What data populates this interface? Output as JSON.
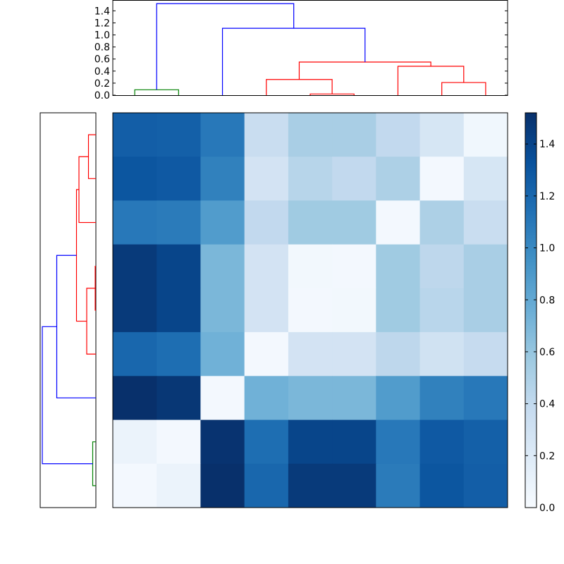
{
  "chart_data": {
    "type": "heatmap",
    "title": "",
    "description": "Clustered distance matrix heatmap with top and left dendrograms and a Blues colorbar",
    "colormap": "Blues",
    "vmin": 0.0,
    "vmax": 1.52,
    "matrix": [
      [
        1.25,
        1.24,
        1.1,
        0.36,
        0.52,
        0.52,
        0.4,
        0.25,
        0.05
      ],
      [
        1.3,
        1.28,
        1.05,
        0.28,
        0.45,
        0.4,
        0.5,
        0.03,
        0.25
      ],
      [
        1.1,
        1.08,
        0.88,
        0.4,
        0.56,
        0.56,
        0.03,
        0.5,
        0.36
      ],
      [
        1.46,
        1.4,
        0.7,
        0.28,
        0.04,
        0.03,
        0.56,
        0.42,
        0.52
      ],
      [
        1.46,
        1.4,
        0.7,
        0.28,
        0.03,
        0.04,
        0.56,
        0.44,
        0.52
      ],
      [
        1.2,
        1.16,
        0.74,
        0.03,
        0.28,
        0.28,
        0.42,
        0.3,
        0.38
      ],
      [
        1.52,
        1.48,
        0.03,
        0.74,
        0.7,
        0.7,
        0.88,
        1.05,
        1.1
      ],
      [
        0.09,
        0.03,
        1.5,
        1.16,
        1.4,
        1.4,
        1.1,
        1.28,
        1.24
      ],
      [
        0.03,
        0.09,
        1.52,
        1.2,
        1.46,
        1.46,
        1.08,
        1.3,
        1.25
      ]
    ],
    "colorbar": {
      "ticks": [
        "0.0",
        "0.2",
        "0.4",
        "0.6",
        "0.8",
        "1.0",
        "1.2",
        "1.4"
      ],
      "tick_values": [
        0.0,
        0.2,
        0.4,
        0.6,
        0.8,
        1.0,
        1.2,
        1.4
      ],
      "range": [
        0.0,
        1.52
      ]
    },
    "top_dendrogram": {
      "yticks": [
        "0.0",
        "0.2",
        "0.4",
        "0.6",
        "0.8",
        "1.0",
        "1.2",
        "1.4"
      ],
      "ylim": [
        0.0,
        1.58
      ],
      "links": [
        {
          "x": [
            0,
            1
          ],
          "height": 0.09,
          "color": "#008000"
        },
        {
          "x": [
            4,
            5
          ],
          "height": 0.02,
          "color": "#ff0000"
        },
        {
          "x": [
            3,
            4.5
          ],
          "height": 0.26,
          "color": "#ff0000"
        },
        {
          "x": [
            7,
            8
          ],
          "height": 0.21,
          "color": "#ff0000"
        },
        {
          "x": [
            6,
            7.5
          ],
          "height": 0.48,
          "color": "#ff0000"
        },
        {
          "x": [
            3.75,
            6.75
          ],
          "height": 0.55,
          "color": "#ff0000"
        },
        {
          "x": [
            2,
            5.25
          ],
          "height": 1.11,
          "color": "#0000ff"
        },
        {
          "x": [
            0.5,
            3.625
          ],
          "height": 1.52,
          "color": "#0000ff"
        }
      ],
      "link_child_heights": [
        [
          0,
          0
        ],
        [
          0,
          0
        ],
        [
          0,
          0.02
        ],
        [
          0,
          0
        ],
        [
          0,
          0.21
        ],
        [
          0.26,
          0.48
        ],
        [
          0,
          0.55
        ],
        [
          0.09,
          1.11
        ]
      ]
    },
    "left_dendrogram": {
      "orientation": "left",
      "mirrors_top": true
    }
  },
  "colors": {
    "cluster1": "#008000",
    "cluster2": "#ff0000",
    "above_threshold": "#0000ff",
    "axes": "#000000"
  }
}
